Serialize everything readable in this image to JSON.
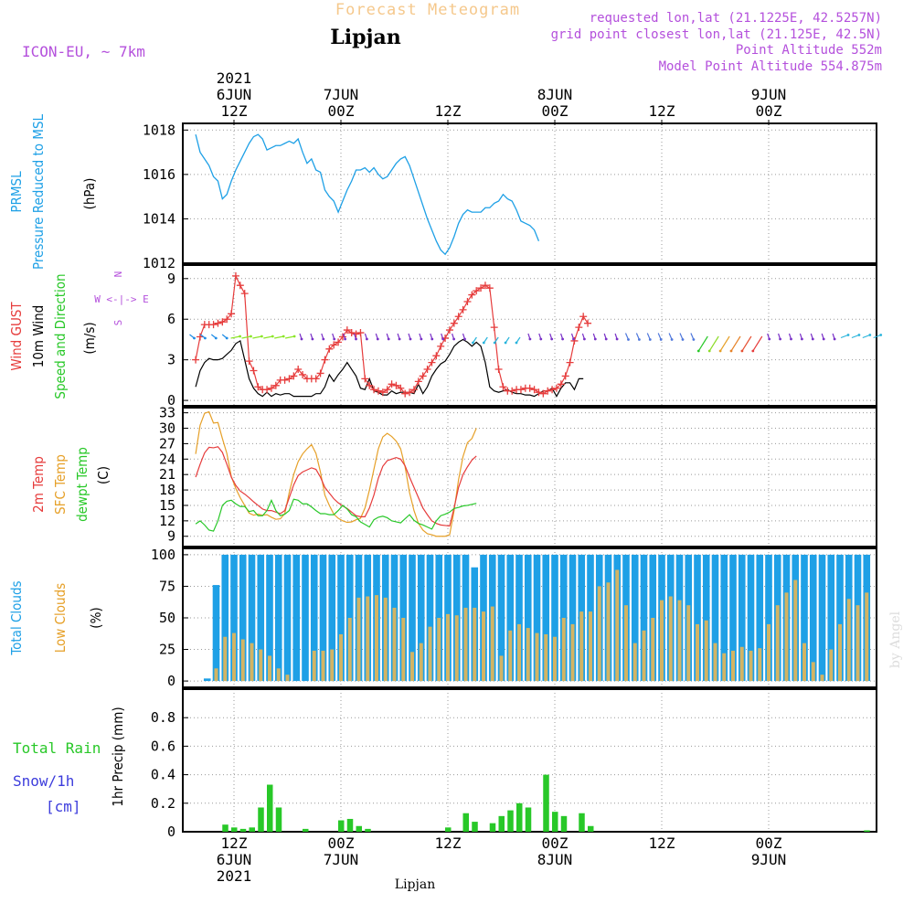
{
  "header": {
    "supertitle": "Forecast Meteogram",
    "title": "Lipjan",
    "model": "ICON-EU, ~ 7km",
    "requested": "requested lon,lat (21.1225E, 42.5257N)",
    "grid_point": "grid point closest lon,lat (21.125E, 42.5N)",
    "point_altitude": "Point Altitude 552m",
    "model_altitude": "Model Point Altitude 554.875m",
    "footer": "Lipjan",
    "watermark": "by Angel"
  },
  "colors": {
    "pressure": "#1ea0e6",
    "gust": "#e63c3c",
    "wind10": "#000000",
    "sfc_temp": "#e6a028",
    "dewpt": "#28c828",
    "total_clouds": "#1ea0e6",
    "low_clouds": "#d2b464",
    "rain": "#28c828",
    "snow": "#3c3cdc",
    "purple": "#b450dc"
  },
  "time_axis": {
    "top_labels": [
      {
        "pos": 0,
        "lines": [
          "2021",
          "6JUN",
          "12Z"
        ]
      },
      {
        "pos": 12,
        "lines": [
          "7JUN",
          "00Z"
        ]
      },
      {
        "pos": 24,
        "lines": [
          "",
          "12Z"
        ]
      },
      {
        "pos": 36,
        "lines": [
          "8JUN",
          "00Z"
        ]
      },
      {
        "pos": 48,
        "lines": [
          "",
          "12Z"
        ]
      },
      {
        "pos": 60,
        "lines": [
          "9JUN",
          "00Z"
        ]
      }
    ],
    "bottom_labels": [
      {
        "pos": 0,
        "lines": [
          "12Z",
          "6JUN",
          "2021"
        ]
      },
      {
        "pos": 12,
        "lines": [
          "00Z",
          "7JUN"
        ]
      },
      {
        "pos": 24,
        "lines": [
          "12Z"
        ]
      },
      {
        "pos": 36,
        "lines": [
          "00Z",
          "8JUN"
        ]
      },
      {
        "pos": 48,
        "lines": [
          "12Z"
        ]
      },
      {
        "pos": 60,
        "lines": [
          "00Z",
          "9JUN"
        ]
      }
    ]
  },
  "panel_labels": {
    "pressure": [
      "PRMSL",
      "Pressure Reduced to MSL",
      "(hPa)"
    ],
    "wind": [
      "Wind GUST",
      "10m Wind",
      "Speed and Direction",
      "(m/s)"
    ],
    "compass": [
      "N",
      "W <-|-> E",
      "S"
    ],
    "temp": [
      "2m Temp",
      "SFC Temp",
      "dewpt Temp",
      "(C)"
    ],
    "clouds": [
      "Total Clouds",
      "Low Clouds",
      "(%)"
    ],
    "precip": [
      "Total  Rain",
      "Snow/1h",
      "[cm]",
      "1hr Precip (mm)"
    ]
  },
  "chart_data": [
    {
      "type": "line",
      "panel": "pressure",
      "ylabel": "(hPa)",
      "ylim": [
        1012,
        1018.3
      ],
      "yticks": [
        1012,
        1014,
        1016,
        1018
      ],
      "x_start": -4.3,
      "x_step": 0.5,
      "series": [
        {
          "name": "PRMSL",
          "values": [
            1017.8,
            1017.0,
            1016.7,
            1016.4,
            1015.9,
            1015.7,
            1014.9,
            1015.1,
            1015.7,
            1016.2,
            1016.6,
            1017.0,
            1017.4,
            1017.7,
            1017.8,
            1017.6,
            1017.1,
            1017.2,
            1017.3,
            1017.3,
            1017.4,
            1017.5,
            1017.4,
            1017.6,
            1017.0,
            1016.5,
            1016.7,
            1016.2,
            1016.1,
            1015.3,
            1015.0,
            1014.8,
            1014.3,
            1014.8,
            1015.3,
            1015.7,
            1016.2,
            1016.2,
            1016.3,
            1016.1,
            1016.3,
            1016.0,
            1015.8,
            1015.9,
            1016.2,
            1016.5,
            1016.7,
            1016.8,
            1016.4,
            1015.8,
            1015.2,
            1014.6,
            1014.0,
            1013.5,
            1013.0,
            1012.6,
            1012.4,
            1012.7,
            1013.2,
            1013.8,
            1014.2,
            1014.4,
            1014.3,
            1014.3,
            1014.3,
            1014.5,
            1014.5,
            1014.7,
            1014.8,
            1015.1,
            1014.9,
            1014.8,
            1014.4,
            1013.9,
            1013.8,
            1013.7,
            1013.5,
            1013.0
          ]
        }
      ]
    },
    {
      "type": "line",
      "panel": "wind",
      "ylabel": "(m/s)",
      "ylim": [
        -0.4,
        10.0
      ],
      "yticks": [
        0,
        3,
        6,
        9
      ],
      "x_start": -4.3,
      "x_step": 0.5,
      "series": [
        {
          "name": "Wind GUST",
          "values": [
            3.0,
            4.7,
            5.6,
            5.6,
            5.6,
            5.7,
            5.8,
            6.0,
            6.4,
            9.2,
            8.5,
            7.9,
            2.9,
            2.2,
            1.0,
            0.8,
            0.8,
            0.9,
            1.1,
            1.5,
            1.5,
            1.6,
            1.8,
            2.3,
            1.9,
            1.6,
            1.6,
            1.6,
            2.0,
            3.0,
            3.8,
            4.1,
            4.3,
            4.7,
            5.2,
            5.0,
            4.9,
            5.0,
            1.6,
            1.1,
            0.8,
            0.7,
            0.6,
            0.8,
            1.2,
            1.1,
            0.9,
            0.5,
            0.6,
            0.8,
            1.4,
            1.8,
            2.3,
            2.8,
            3.3,
            4.0,
            4.6,
            5.2,
            5.7,
            6.2,
            6.7,
            7.3,
            7.8,
            8.1,
            8.3,
            8.5,
            8.3,
            5.4,
            2.3,
            1.0,
            0.7,
            0.7,
            0.8,
            0.8,
            0.9,
            0.9,
            0.8,
            0.6,
            0.5,
            0.7,
            0.8,
            0.9,
            1.2,
            1.8,
            2.8,
            4.4,
            5.4,
            6.2,
            5.7
          ]
        },
        {
          "name": "10m Wind",
          "values": [
            1.0,
            2.2,
            2.8,
            3.1,
            3.0,
            3.0,
            3.1,
            3.4,
            3.7,
            4.2,
            4.4,
            3.0,
            1.6,
            0.9,
            0.5,
            0.3,
            0.6,
            0.3,
            0.5,
            0.4,
            0.5,
            0.5,
            0.3,
            0.3,
            0.3,
            0.3,
            0.3,
            0.5,
            0.5,
            1.0,
            1.9,
            1.4,
            1.9,
            2.3,
            2.8,
            2.3,
            1.8,
            0.9,
            0.8,
            1.6,
            0.7,
            0.6,
            0.4,
            0.4,
            0.7,
            0.5,
            0.6,
            0.6,
            0.6,
            0.5,
            1.2,
            0.5,
            1.0,
            1.8,
            2.3,
            2.7,
            2.9,
            3.4,
            4.0,
            4.3,
            4.5,
            4.3,
            4.0,
            4.3,
            4.0,
            2.8,
            1.0,
            0.7,
            0.6,
            0.7,
            0.8,
            0.6,
            0.5,
            0.5,
            0.4,
            0.4,
            0.3,
            0.5,
            0.7,
            0.7,
            0.9,
            0.3,
            0.9,
            1.3,
            1.3,
            0.8,
            1.6,
            1.6
          ]
        },
        {
          "name": "10m Wind Direction",
          "kind": "vectors",
          "count": 64
        }
      ]
    },
    {
      "type": "line",
      "panel": "temp",
      "ylabel": "(C)",
      "ylim": [
        7.0,
        34.0
      ],
      "yticks": [
        9,
        12,
        15,
        18,
        21,
        24,
        27,
        30,
        33
      ],
      "x_start": -4.3,
      "x_step": 0.5,
      "series": [
        {
          "name": "2m Temp",
          "values": [
            20.5,
            23.0,
            25.2,
            26.3,
            26.2,
            26.4,
            25.3,
            23.0,
            20.5,
            18.9,
            17.8,
            17.2,
            16.5,
            15.7,
            15.0,
            14.3,
            14.0,
            14.0,
            13.7,
            13.4,
            14.0,
            16.5,
            19.0,
            20.8,
            21.5,
            21.9,
            22.3,
            22.0,
            20.5,
            18.5,
            17.4,
            16.3,
            15.5,
            14.9,
            14.4,
            13.7,
            13.0,
            12.8,
            12.8,
            14.5,
            17.0,
            20.3,
            22.6,
            23.7,
            24.0,
            24.3,
            24.0,
            22.7,
            20.5,
            18.5,
            16.5,
            14.5,
            13.2,
            12.0,
            11.5,
            11.2,
            11.1,
            11.0,
            14.5,
            18.5,
            21.0,
            22.5,
            23.8,
            24.6
          ]
        },
        {
          "name": "SFC Temp",
          "values": [
            25.0,
            30.6,
            32.9,
            33.2,
            31.0,
            31.1,
            28.0,
            25.1,
            20.6,
            18.3,
            16.5,
            15.0,
            13.5,
            13.1,
            13.3,
            13.1,
            13.2,
            12.7,
            12.3,
            12.4,
            13.4,
            17.5,
            21.0,
            23.5,
            25.0,
            26.0,
            26.8,
            25.1,
            21.5,
            17.0,
            15.0,
            13.3,
            12.5,
            12.0,
            11.7,
            11.8,
            12.2,
            12.5,
            14.5,
            18.0,
            22.0,
            26.0,
            28.3,
            29.0,
            28.4,
            27.5,
            26.0,
            22.5,
            17.5,
            14.0,
            11.5,
            10.2,
            9.5,
            9.3,
            9.0,
            9.0,
            9.0,
            9.3,
            14.0,
            20.0,
            24.5,
            27.2,
            28.0,
            30.0
          ]
        },
        {
          "name": "dewpt Temp",
          "values": [
            11.4,
            12.0,
            11.2,
            10.2,
            10.0,
            12.0,
            15.0,
            15.8,
            16.0,
            15.3,
            14.8,
            14.8,
            13.8,
            14.0,
            13.0,
            13.0,
            14.0,
            16.0,
            14.0,
            13.0,
            13.3,
            14.0,
            16.2,
            16.0,
            15.3,
            15.3,
            14.7,
            14.0,
            13.4,
            13.4,
            13.2,
            13.2,
            14.0,
            15.0,
            14.3,
            13.2,
            12.8,
            11.8,
            11.3,
            10.8,
            12.2,
            12.7,
            12.9,
            12.6,
            12.0,
            11.8,
            11.6,
            12.4,
            13.2,
            12.1,
            11.5,
            11.2,
            10.8,
            10.4,
            12.0,
            13.0,
            13.3,
            13.7,
            14.4,
            14.6,
            14.9,
            15.0,
            15.2,
            15.4
          ]
        }
      ]
    },
    {
      "type": "bar",
      "panel": "clouds",
      "ylabel": "(%)",
      "ylim": [
        -5,
        105
      ],
      "yticks": [
        0,
        25,
        50,
        75,
        100
      ],
      "x_start": -3.0,
      "x_step": 1.0,
      "series": [
        {
          "name": "Total Clouds",
          "values": [
            2,
            76,
            100,
            100,
            100,
            100,
            100,
            100,
            100,
            100,
            100,
            100,
            100,
            100,
            100,
            100,
            100,
            100,
            100,
            100,
            100,
            100,
            100,
            100,
            100,
            100,
            100,
            100,
            100,
            100,
            90,
            100,
            100,
            100,
            100,
            100,
            100,
            100,
            100,
            100,
            100,
            100,
            100,
            100,
            100,
            100,
            100,
            100,
            100,
            100,
            100,
            100,
            100,
            100,
            100,
            100,
            100,
            100,
            100,
            100,
            100,
            100,
            100,
            100,
            100,
            100,
            100,
            100,
            100,
            100,
            100,
            100,
            100,
            100,
            100,
            100,
            100,
            100,
            100,
            100,
            100,
            100,
            100,
            100,
            100,
            100,
            100
          ]
        },
        {
          "name": "Low Clouds",
          "values": [
            0,
            10,
            35,
            38,
            33,
            30,
            25,
            20,
            10,
            5,
            0,
            0,
            24,
            24,
            25,
            37,
            50,
            66,
            67,
            68,
            66,
            58,
            50,
            23,
            30,
            43,
            50,
            53,
            52,
            58,
            58,
            55,
            59,
            20,
            40,
            45,
            42,
            38,
            37,
            35,
            50,
            45,
            55,
            55,
            75,
            78,
            88,
            60,
            30,
            40,
            50,
            64,
            67,
            64,
            60,
            45,
            48,
            30,
            22,
            24,
            27,
            24,
            26,
            45,
            60,
            70,
            80,
            30,
            15,
            5,
            25,
            45,
            65,
            60,
            70,
            25,
            45,
            40,
            15,
            55,
            60,
            22,
            62,
            43,
            12,
            48,
            60
          ]
        }
      ]
    },
    {
      "type": "bar",
      "panel": "precip",
      "ylabel": "1hr Precip (mm)",
      "ylim": [
        0,
        1.0
      ],
      "yticks": [
        0,
        0.2,
        0.4,
        0.6,
        0.8
      ],
      "x_start": -3.0,
      "x_step": 1.0,
      "series": [
        {
          "name": "Total Rain",
          "values": [
            0,
            0,
            0.05,
            0.03,
            0.02,
            0.03,
            0.17,
            0.33,
            0.17,
            0,
            0,
            0.02,
            0,
            0,
            0,
            0.08,
            0.09,
            0.04,
            0.02,
            0,
            0,
            0,
            0,
            0,
            0,
            0,
            0,
            0.03,
            0,
            0.13,
            0.07,
            0,
            0.06,
            0.11,
            0.15,
            0.2,
            0.17,
            0,
            0.4,
            0.14,
            0.11,
            0,
            0.13,
            0.04,
            0,
            0,
            0,
            0,
            0,
            0,
            0,
            0,
            0,
            0,
            0,
            0,
            0,
            0,
            0,
            0,
            0,
            0,
            0,
            0,
            0,
            0,
            0,
            0,
            0,
            0,
            0,
            0,
            0,
            0,
            0.01,
            0.02,
            0.05
          ]
        },
        {
          "name": "Snow/1h",
          "values": []
        }
      ]
    }
  ]
}
